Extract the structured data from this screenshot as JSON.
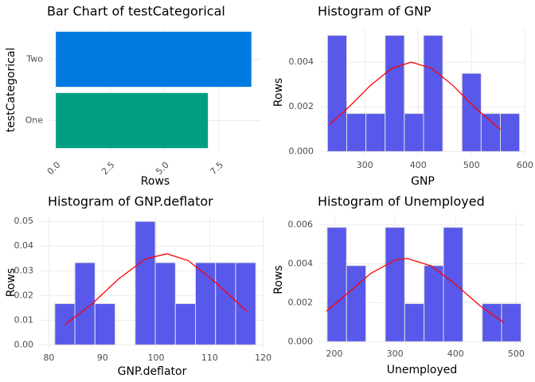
{
  "chart_data": [
    {
      "type": "bar",
      "orientation": "horizontal",
      "title": "Bar Chart of testCategorical",
      "categories": [
        "One",
        "Two"
      ],
      "values": [
        7,
        9
      ],
      "colors": [
        "#009E83",
        "#0079E0"
      ],
      "xlabel": "Rows",
      "ylabel": "testCategorical",
      "xlim": [
        -0.3,
        9.45
      ],
      "xticks": [
        {
          "value": 0,
          "label": "0.0"
        },
        {
          "value": 2.5,
          "label": "2.5"
        },
        {
          "value": 5,
          "label": "5.0"
        },
        {
          "value": 7.5,
          "label": "7.5"
        }
      ],
      "grid": true
    },
    {
      "type": "histogram",
      "title": "Histogram of GNP",
      "xlabel": "GNP",
      "ylabel": "Rows",
      "bins": [
        230,
        266,
        302,
        338,
        374,
        410,
        446,
        482,
        518,
        554,
        590
      ],
      "values": [
        0.0052,
        0.0017,
        0.0017,
        0.0052,
        0.0017,
        0.0052,
        0,
        0.0035,
        0.0017,
        0.0017
      ],
      "color": "#5858EA",
      "curve": {
        "x": [
          234,
          270,
          310,
          350,
          387,
          425,
          465,
          505,
          554
        ],
        "values": [
          0.00121,
          0.00199,
          0.00295,
          0.00372,
          0.004,
          0.00373,
          0.00296,
          0.00199,
          0.00099
        ],
        "color": "#FF0000"
      },
      "xlim": [
        216,
        601
      ],
      "xticks": [
        300,
        400,
        500,
        600
      ],
      "ylim": [
        -0.0002,
        0.0055
      ],
      "yticks": [
        {
          "value": 0,
          "label": "0.000"
        },
        {
          "value": 0.002,
          "label": "0.002"
        },
        {
          "value": 0.004,
          "label": "0.004"
        }
      ],
      "grid": true
    },
    {
      "type": "histogram",
      "title": "Histogram of GNP.deflator",
      "xlabel": "GNP.deflator",
      "ylabel": "Rows",
      "bins": [
        81.1,
        84.85,
        88.6,
        92.35,
        96.1,
        99.85,
        103.6,
        107.35,
        111.1,
        114.85,
        118.6
      ],
      "values": [
        0.0167,
        0.0333,
        0.0167,
        0,
        0.05,
        0.0333,
        0.0167,
        0.0333,
        0.0333,
        0.0333
      ],
      "color": "#5858EA",
      "curve": {
        "x": [
          83,
          88,
          93,
          98,
          102,
          106,
          111,
          117
        ],
        "values": [
          0.0082,
          0.0165,
          0.0267,
          0.0348,
          0.0369,
          0.0341,
          0.0255,
          0.0135
        ],
        "color": "#FF0000"
      },
      "xlim": [
        78.3,
        120.2
      ],
      "xticks": [
        80,
        90,
        100,
        110,
        120
      ],
      "ylim": [
        -0.0015,
        0.052
      ],
      "yticks": [
        {
          "value": 0,
          "label": "0.00"
        },
        {
          "value": 0.01,
          "label": "0.01"
        },
        {
          "value": 0.02,
          "label": "0.02"
        },
        {
          "value": 0.03,
          "label": "0.03"
        },
        {
          "value": 0.04,
          "label": "0.04"
        },
        {
          "value": 0.05,
          "label": "0.05"
        }
      ],
      "grid": true
    },
    {
      "type": "histogram",
      "title": "Histogram of Unemployed",
      "xlabel": "Unemployed",
      "ylabel": "Rows",
      "bins": [
        188,
        220,
        252,
        284,
        316,
        348,
        380,
        412,
        444,
        476,
        508
      ],
      "values": [
        0.00586,
        0.0039,
        0,
        0.00586,
        0.00195,
        0.0039,
        0.00586,
        0,
        0.00195,
        0.00195
      ],
      "color": "#5858EA",
      "curve": {
        "x": [
          187,
          220,
          260,
          300,
          320,
          360,
          400,
          440,
          480
        ],
        "values": [
          0.00157,
          0.00243,
          0.0035,
          0.00418,
          0.00427,
          0.00388,
          0.00293,
          0.00185,
          0.00097
        ],
        "color": "#FF0000"
      },
      "xlim": [
        175,
        514
      ],
      "xticks": [
        200,
        300,
        400,
        500
      ],
      "ylim": [
        -0.00015,
        0.0065
      ],
      "yticks": [
        {
          "value": 0,
          "label": "0.000"
        },
        {
          "value": 0.002,
          "label": "0.002"
        },
        {
          "value": 0.004,
          "label": "0.004"
        },
        {
          "value": 0.006,
          "label": "0.006"
        }
      ],
      "grid": true
    }
  ]
}
